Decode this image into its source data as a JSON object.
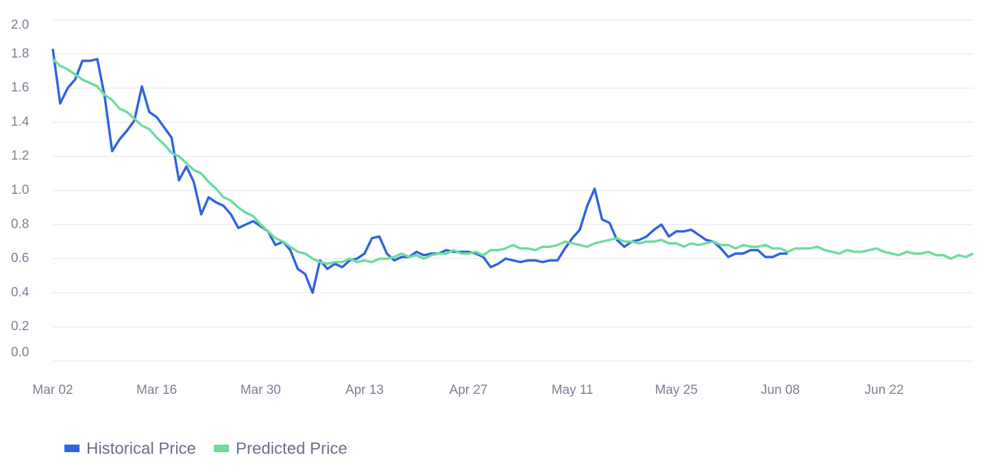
{
  "chart_data": {
    "type": "line",
    "x": [
      "Mar 02",
      "Mar 03",
      "Mar 04",
      "Mar 05",
      "Mar 06",
      "Mar 07",
      "Mar 08",
      "Mar 09",
      "Mar 10",
      "Mar 11",
      "Mar 12",
      "Mar 13",
      "Mar 14",
      "Mar 15",
      "Mar 16",
      "Mar 17",
      "Mar 18",
      "Mar 19",
      "Mar 20",
      "Mar 21",
      "Mar 22",
      "Mar 23",
      "Mar 24",
      "Mar 25",
      "Mar 26",
      "Mar 27",
      "Mar 28",
      "Mar 29",
      "Mar 30",
      "Mar 31",
      "Apr 01",
      "Apr 02",
      "Apr 03",
      "Apr 04",
      "Apr 05",
      "Apr 06",
      "Apr 07",
      "Apr 08",
      "Apr 09",
      "Apr 10",
      "Apr 11",
      "Apr 12",
      "Apr 13",
      "Apr 14",
      "Apr 15",
      "Apr 16",
      "Apr 17",
      "Apr 18",
      "Apr 19",
      "Apr 20",
      "Apr 21",
      "Apr 22",
      "Apr 23",
      "Apr 24",
      "Apr 25",
      "Apr 26",
      "Apr 27",
      "Apr 28",
      "Apr 29",
      "Apr 30",
      "May 01",
      "May 02",
      "May 03",
      "May 04",
      "May 05",
      "May 06",
      "May 07",
      "May 08",
      "May 09",
      "May 10",
      "May 11",
      "May 12",
      "May 13",
      "May 14",
      "May 15",
      "May 16",
      "May 17",
      "May 18",
      "May 19",
      "May 20",
      "May 21",
      "May 22",
      "May 23",
      "May 24",
      "May 25",
      "May 26",
      "May 27",
      "May 28",
      "May 29",
      "May 30",
      "May 31",
      "Jun 01",
      "Jun 02",
      "Jun 03",
      "Jun 04",
      "Jun 05",
      "Jun 06",
      "Jun 07",
      "Jun 08",
      "Jun 09",
      "Jun 10",
      "Jun 11",
      "Jun 12",
      "Jun 13",
      "Jun 14",
      "Jun 15",
      "Jun 16",
      "Jun 17",
      "Jun 18",
      "Jun 19",
      "Jun 20",
      "Jun 21",
      "Jun 22",
      "Jun 23",
      "Jun 24",
      "Jun 25",
      "Jun 26",
      "Jun 27",
      "Jun 28",
      "Jun 29",
      "Jun 30",
      "Jul 01",
      "Jul 02",
      "Jul 03",
      "Jul 04"
    ],
    "xticks": [
      "Mar 02",
      "Mar 16",
      "Mar 30",
      "Apr 13",
      "Apr 27",
      "May 11",
      "May 25",
      "Jun 08",
      "Jun 22"
    ],
    "ylim": [
      0,
      2
    ],
    "yticks": [
      {
        "value": 0,
        "label": "0.0"
      },
      0.2,
      0.4,
      0.6,
      0.8,
      {
        "value": 1,
        "label": "1.0"
      },
      1.2,
      1.4,
      1.6,
      1.8,
      {
        "value": 2,
        "label": "2.0"
      }
    ],
    "grid": true,
    "series": [
      {
        "name": "Historical Price",
        "color": "#2f63e0",
        "values": [
          1.83,
          1.51,
          1.6,
          1.65,
          1.76,
          1.76,
          1.77,
          1.55,
          1.23,
          1.3,
          1.35,
          1.41,
          1.61,
          1.46,
          1.43,
          1.37,
          1.31,
          1.06,
          1.14,
          1.05,
          0.86,
          0.96,
          0.93,
          0.91,
          0.86,
          0.78,
          0.8,
          0.82,
          0.79,
          0.76,
          0.68,
          0.7,
          0.65,
          0.54,
          0.51,
          0.4,
          0.59,
          0.54,
          0.57,
          0.55,
          0.59,
          0.6,
          0.63,
          0.72,
          0.73,
          0.63,
          0.59,
          0.61,
          0.61,
          0.64,
          0.62,
          0.63,
          0.63,
          0.65,
          0.64,
          0.64,
          0.64,
          0.63,
          0.61,
          0.55,
          0.57,
          0.6,
          0.59,
          0.58,
          0.59,
          0.59,
          0.58,
          0.59,
          0.59,
          0.66,
          0.72,
          0.77,
          0.91,
          1.01,
          0.83,
          0.81,
          0.71,
          0.67,
          0.7,
          0.71,
          0.73,
          0.77,
          0.8,
          0.73,
          0.76,
          0.76,
          0.77,
          0.74,
          0.71,
          0.7,
          0.66,
          0.61,
          0.63,
          0.63,
          0.65,
          0.65,
          0.61,
          0.61,
          0.63,
          0.63,
          null,
          null,
          null,
          null,
          null,
          null,
          null,
          null,
          null,
          null,
          null,
          null,
          null,
          null,
          null,
          null,
          null,
          null,
          null,
          null,
          null,
          null,
          null,
          null,
          null
        ]
      },
      {
        "name": "Predicted Price",
        "color": "#6ddc9d",
        "values": [
          1.77,
          1.73,
          1.71,
          1.68,
          1.65,
          1.63,
          1.61,
          1.56,
          1.53,
          1.48,
          1.46,
          1.42,
          1.38,
          1.36,
          1.31,
          1.27,
          1.22,
          1.2,
          1.16,
          1.12,
          1.1,
          1.05,
          1.01,
          0.96,
          0.94,
          0.9,
          0.87,
          0.85,
          0.8,
          0.76,
          0.72,
          0.7,
          0.67,
          0.64,
          0.63,
          0.6,
          0.58,
          0.57,
          0.58,
          0.58,
          0.6,
          0.58,
          0.59,
          0.58,
          0.6,
          0.6,
          0.61,
          0.63,
          0.61,
          0.62,
          0.6,
          0.62,
          0.63,
          0.63,
          0.65,
          0.63,
          0.63,
          0.64,
          0.62,
          0.65,
          0.65,
          0.66,
          0.68,
          0.66,
          0.66,
          0.65,
          0.67,
          0.67,
          0.68,
          0.7,
          0.69,
          0.68,
          0.67,
          0.69,
          0.7,
          0.71,
          0.72,
          0.7,
          0.7,
          0.69,
          0.7,
          0.7,
          0.71,
          0.69,
          0.69,
          0.67,
          0.69,
          0.68,
          0.69,
          0.7,
          0.68,
          0.68,
          0.66,
          0.68,
          0.67,
          0.67,
          0.68,
          0.66,
          0.66,
          0.64,
          0.66,
          0.66,
          0.66,
          0.67,
          0.65,
          0.64,
          0.63,
          0.65,
          0.64,
          0.64,
          0.65,
          0.66,
          0.64,
          0.63,
          0.62,
          0.64,
          0.63,
          0.63,
          0.64,
          0.62,
          0.62,
          0.6,
          0.62,
          0.61,
          0.63
        ]
      }
    ]
  }
}
